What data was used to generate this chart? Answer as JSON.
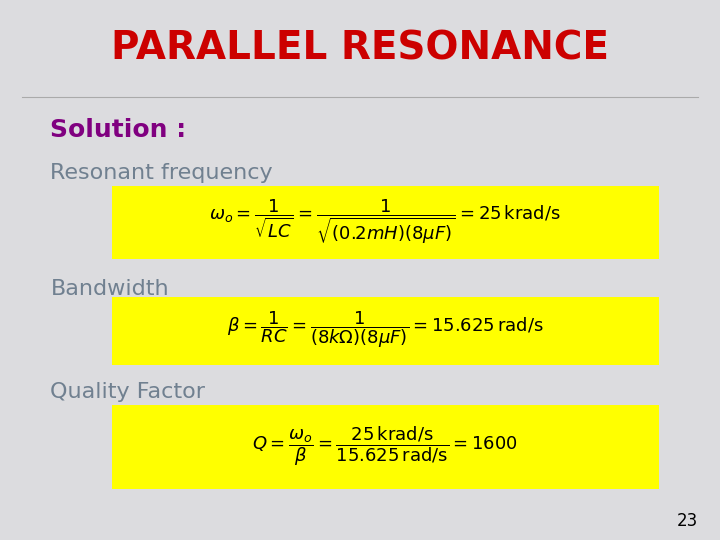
{
  "title": "PARALLEL RESONANCE",
  "title_color": "#CC0000",
  "title_fontsize": 28,
  "solution_label": "Solution :",
  "solution_color": "#800080",
  "solution_fontsize": 18,
  "bg_color": "#D4D4D8",
  "yellow_bg": "#FFFF00",
  "section1_label": "Resonant frequency",
  "section2_label": "Bandwidth",
  "section3_label": "Quality Factor",
  "section_color": "#708090",
  "section_fontsize": 16,
  "formula1": "\\omega_o = \\dfrac{1}{\\sqrt{LC}} = \\dfrac{1}{\\sqrt{(0.2mH)(8\\mu F)}} = 25\\,\\mathrm{krad/s}",
  "formula2": "\\beta = \\dfrac{1}{RC} = \\dfrac{1}{(8k\\Omega)(8\\mu F)} = 15.625\\,\\mathrm{rad/s}",
  "formula3": "Q = \\dfrac{\\omega_o}{\\beta} = \\dfrac{25\\,\\mathrm{krad/s}}{15.625\\,\\mathrm{rad/s}} = 1600",
  "page_number": "23",
  "formula_fontsize": 13
}
